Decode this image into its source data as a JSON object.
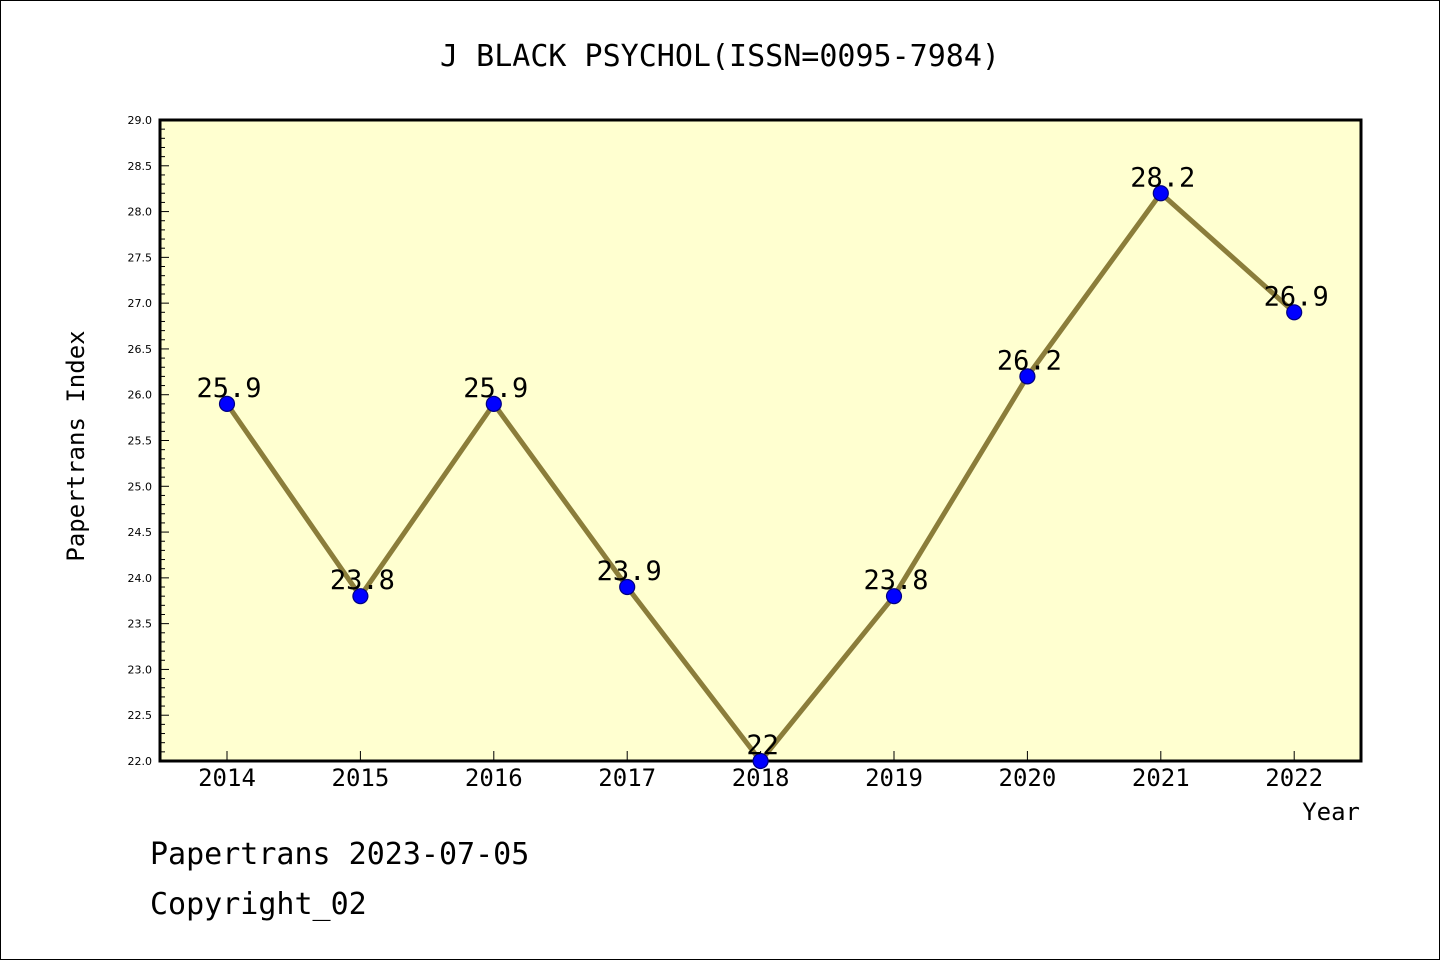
{
  "chart_data": {
    "type": "line",
    "title": "J BLACK PSYCHOL(ISSN=0095-7984)",
    "xlabel": "Year",
    "ylabel": "Papertrans Index",
    "categories": [
      "2014",
      "2015",
      "2016",
      "2017",
      "2018",
      "2019",
      "2020",
      "2021",
      "2022"
    ],
    "values": [
      25.9,
      23.8,
      25.9,
      23.9,
      22.0,
      23.8,
      26.2,
      28.2,
      26.9
    ],
    "data_labels": [
      "25.9",
      "23.8",
      "25.9",
      "23.9",
      "22",
      "23.8",
      "26.2",
      "28.2",
      "26.9"
    ],
    "ylim": [
      22.0,
      29.0
    ],
    "yticks": [
      "22.0",
      "22.5",
      "23.0",
      "23.5",
      "24.0",
      "24.5",
      "25.0",
      "25.5",
      "26.0",
      "26.5",
      "27.0",
      "27.5",
      "28.0",
      "28.5",
      "29.0"
    ],
    "grid": false,
    "colors": {
      "plot_background": "#ffffd0",
      "line": "#8b7d3a",
      "marker": "#0000ff",
      "marker_edge": "#000080"
    }
  },
  "footer": {
    "line1": "Papertrans 2023-07-05",
    "line2": "Copyright_02"
  }
}
